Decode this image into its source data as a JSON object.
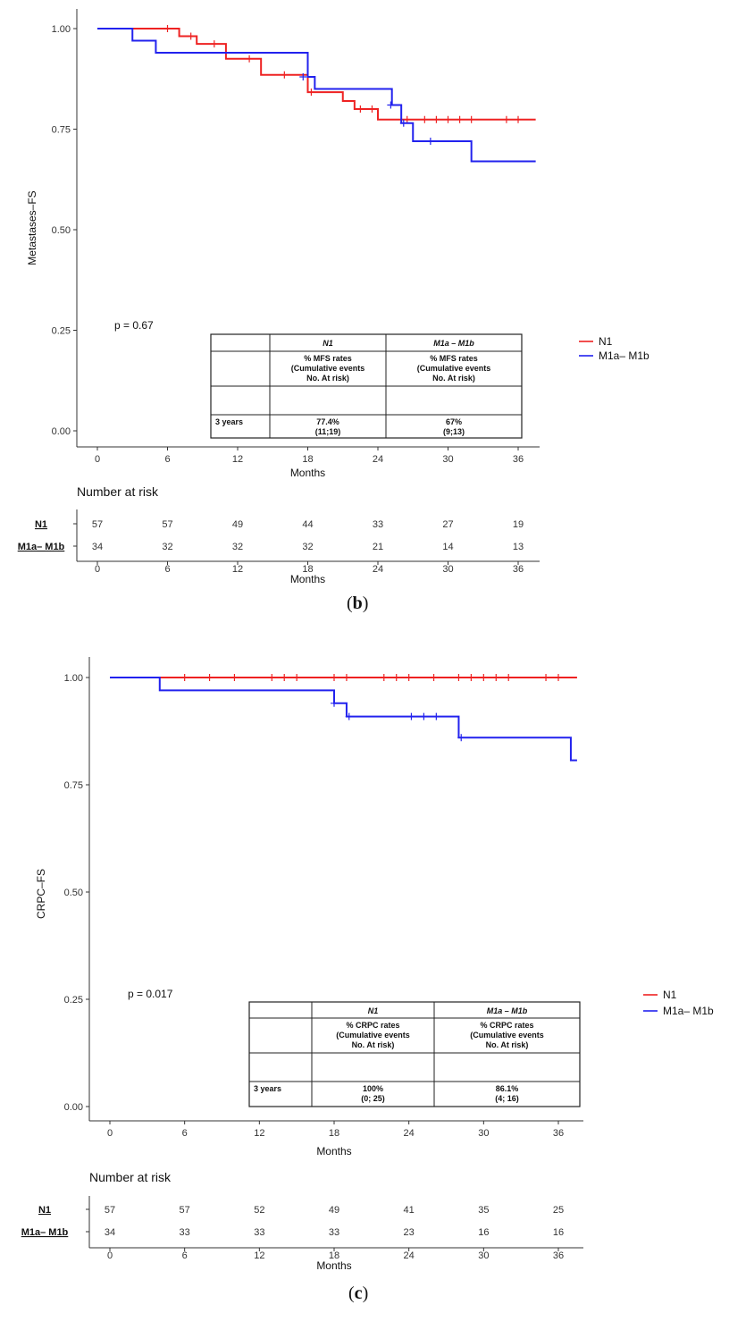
{
  "panels": [
    {
      "label_open": "(",
      "label_letter": "b",
      "label_close": ")",
      "pvalue": "p = 0.67",
      "risk_title": "Number at risk",
      "xlabel": "Months",
      "risk_xlabel": "Months",
      "legend": [
        "N1",
        "M1a– M1b"
      ],
      "table": {
        "headers": [
          "",
          "N1",
          "M1a – M1b"
        ],
        "desc": [
          "% MFS rates",
          "(Cumulative events",
          "No. At risk)"
        ],
        "row_label": "3 years",
        "vals": [
          [
            "77.4%",
            "(11;19)"
          ],
          [
            "67%",
            "(9;13)"
          ]
        ]
      },
      "risk": {
        "groups": [
          "N1",
          "M1a– M1b"
        ],
        "values": [
          [
            "57",
            "57",
            "49",
            "44",
            "33",
            "27",
            "19"
          ],
          [
            "34",
            "32",
            "32",
            "32",
            "21",
            "14",
            "13"
          ]
        ]
      }
    },
    {
      "label_open": "(",
      "label_letter": "c",
      "label_close": ")",
      "pvalue": "p = 0.017",
      "risk_title": "Number at risk",
      "xlabel": "Months",
      "risk_xlabel": "Months",
      "legend": [
        "N1",
        "M1a– M1b"
      ],
      "table": {
        "headers": [
          "",
          "N1",
          "M1a – M1b"
        ],
        "desc": [
          "% CRPC rates",
          "(Cumulative events",
          "No. At risk)"
        ],
        "row_label": "3 years",
        "vals": [
          [
            "100%",
            "(0; 25)"
          ],
          [
            "86.1%",
            "(4; 16)"
          ]
        ]
      },
      "risk": {
        "groups": [
          "N1",
          "M1a– M1b"
        ],
        "values": [
          [
            "57",
            "57",
            "52",
            "49",
            "41",
            "35",
            "25"
          ],
          [
            "34",
            "33",
            "33",
            "33",
            "23",
            "16",
            "16"
          ]
        ]
      }
    }
  ],
  "chart_data": [
    {
      "type": "line",
      "ylabel": "Metastases–FS",
      "xlabel": "Months",
      "xlim": [
        0,
        37
      ],
      "ylim": [
        0,
        1
      ],
      "xticks": [
        "0",
        "6",
        "12",
        "18",
        "24",
        "30",
        "36"
      ],
      "yticks": [
        "0.00",
        "0.25",
        "0.50",
        "0.75",
        "1.00"
      ],
      "grid": false,
      "colors": {
        "N1": "#ee2222",
        "M1a– M1b": "#2222ee"
      },
      "series": [
        {
          "name": "N1",
          "color": "#ee2222",
          "steps": [
            [
              0,
              1.0
            ],
            [
              7,
              0.981
            ],
            [
              8.5,
              0.962
            ],
            [
              11,
              0.925
            ],
            [
              14,
              0.885
            ],
            [
              18,
              0.842
            ],
            [
              21,
              0.82
            ],
            [
              22,
              0.8
            ],
            [
              24,
              0.774
            ],
            [
              37.5,
              0.774
            ]
          ],
          "censors": [
            [
              6,
              1.0
            ],
            [
              8,
              0.981
            ],
            [
              10,
              0.962
            ],
            [
              13,
              0.925
            ],
            [
              16,
              0.885
            ],
            [
              18.3,
              0.842
            ],
            [
              22.5,
              0.8
            ],
            [
              23.5,
              0.8
            ],
            [
              26.5,
              0.774
            ],
            [
              28,
              0.774
            ],
            [
              29,
              0.774
            ],
            [
              30,
              0.774
            ],
            [
              31,
              0.774
            ],
            [
              32,
              0.774
            ],
            [
              35,
              0.774
            ],
            [
              36,
              0.774
            ]
          ]
        },
        {
          "name": "M1a– M1b",
          "color": "#2222ee",
          "steps": [
            [
              0,
              1.0
            ],
            [
              3,
              0.97
            ],
            [
              5,
              0.94
            ],
            [
              18,
              0.88
            ],
            [
              18.6,
              0.85
            ],
            [
              25.2,
              0.81
            ],
            [
              26,
              0.765
            ],
            [
              27,
              0.72
            ],
            [
              32,
              0.67
            ],
            [
              37.5,
              0.67
            ]
          ],
          "censors": [
            [
              17.6,
              0.88
            ],
            [
              25.1,
              0.81
            ],
            [
              26.2,
              0.765
            ],
            [
              28.5,
              0.72
            ]
          ]
        }
      ]
    },
    {
      "type": "line",
      "ylabel": "CRPC–FS",
      "xlabel": "Months",
      "xlim": [
        0,
        37
      ],
      "ylim": [
        0,
        1
      ],
      "xticks": [
        "0",
        "6",
        "12",
        "18",
        "24",
        "30",
        "36"
      ],
      "yticks": [
        "0.00",
        "0.25",
        "0.50",
        "0.75",
        "1.00"
      ],
      "grid": false,
      "colors": {
        "N1": "#ee2222",
        "M1a– M1b": "#2222ee"
      },
      "series": [
        {
          "name": "N1",
          "color": "#ee2222",
          "steps": [
            [
              0,
              1.0
            ],
            [
              37.5,
              1.0
            ]
          ],
          "censors": [
            [
              6,
              1.0
            ],
            [
              8,
              1.0
            ],
            [
              10,
              1.0
            ],
            [
              13,
              1.0
            ],
            [
              14,
              1.0
            ],
            [
              15,
              1.0
            ],
            [
              18,
              1.0
            ],
            [
              19,
              1.0
            ],
            [
              22,
              1.0
            ],
            [
              23,
              1.0
            ],
            [
              24,
              1.0
            ],
            [
              26,
              1.0
            ],
            [
              28,
              1.0
            ],
            [
              29,
              1.0
            ],
            [
              30,
              1.0
            ],
            [
              31,
              1.0
            ],
            [
              32,
              1.0
            ],
            [
              35,
              1.0
            ],
            [
              36,
              1.0
            ]
          ]
        },
        {
          "name": "M1a– M1b",
          "color": "#2222ee",
          "steps": [
            [
              0,
              1.0
            ],
            [
              4,
              0.97
            ],
            [
              18,
              0.94
            ],
            [
              19,
              0.909
            ],
            [
              28,
              0.86
            ],
            [
              37,
              0.807
            ],
            [
              37.5,
              0.807
            ]
          ],
          "censors": [
            [
              18,
              0.94
            ],
            [
              19.2,
              0.909
            ],
            [
              24.2,
              0.909
            ],
            [
              25.2,
              0.909
            ],
            [
              26.2,
              0.909
            ],
            [
              28.2,
              0.86
            ]
          ]
        }
      ]
    }
  ]
}
